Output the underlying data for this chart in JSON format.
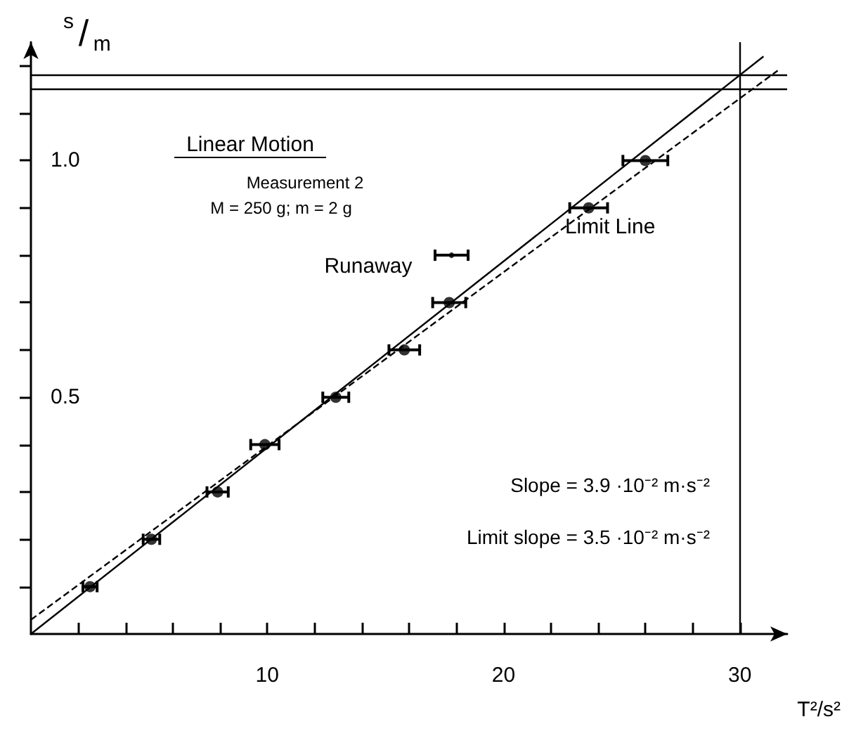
{
  "chart_data": {
    "type": "scatter",
    "xlabel": "T²/s²",
    "ylabel": "s/m",
    "xlim": [
      0,
      32
    ],
    "ylim": [
      0,
      1.25
    ],
    "xticks": [
      {
        "value": 2,
        "label": null
      },
      {
        "value": 4,
        "label": null
      },
      {
        "value": 6,
        "label": null
      },
      {
        "value": 8,
        "label": null
      },
      10,
      {
        "value": 12,
        "label": null
      },
      {
        "value": 14,
        "label": null
      },
      {
        "value": 16,
        "label": null
      },
      {
        "value": 18,
        "label": null
      },
      20,
      {
        "value": 22,
        "label": null
      },
      {
        "value": 24,
        "label": null
      },
      {
        "value": 26,
        "label": null
      },
      {
        "value": 28,
        "label": null
      },
      30
    ],
    "yticks": [
      {
        "value": 0.1,
        "label": null
      },
      {
        "value": 0.2,
        "label": null
      },
      {
        "value": 0.3,
        "label": null
      },
      {
        "value": 0.4,
        "label": null
      },
      {
        "value": 0.5,
        "label": "0.5"
      },
      {
        "value": 0.6,
        "label": null
      },
      {
        "value": 0.7,
        "label": null
      },
      {
        "value": 0.8,
        "label": null
      },
      {
        "value": 0.9,
        "label": null
      },
      {
        "value": 1.0,
        "label": "1.0"
      },
      {
        "value": 1.1,
        "label": null
      },
      {
        "value": 1.2,
        "label": null
      }
    ],
    "grid": false,
    "series": [
      {
        "color": "#000000",
        "marker": "circle",
        "x": [
          2.5,
          5.1,
          7.9,
          9.9,
          12.9,
          15.8,
          17.7,
          23.6,
          26.0
        ],
        "values": [
          0.1,
          0.2,
          0.3,
          0.4,
          0.5,
          0.6,
          0.7,
          0.9,
          1.0
        ],
        "xerrors": [
          0.3,
          0.35,
          0.45,
          0.6,
          0.55,
          0.65,
          0.7,
          0.8,
          0.95
        ]
      },
      {
        "color": "#000000",
        "marker": "circle",
        "x": [
          17.8
        ],
        "values": [
          0.8
        ],
        "xerrors": [
          0.7
        ]
      },
      {
        "type": "line",
        "color": "#000000",
        "marker": "none",
        "line_style": "solid",
        "x": [
          0,
          31
        ],
        "values": [
          0,
          1.22
        ]
      },
      {
        "type": "line",
        "color": "#000000",
        "marker": "none",
        "line_style": "dashed",
        "x": [
          0,
          31.6
        ],
        "values": [
          0.03,
          1.19
        ]
      }
    ],
    "ref_lines": [
      {
        "axis": "x",
        "value": 30,
        "label": null,
        "color": "#000000"
      },
      {
        "axis": "y",
        "value": 1.15,
        "label": null,
        "color": "#000000"
      },
      {
        "axis": "y",
        "value": 1.18,
        "label": null,
        "color": "#000000"
      }
    ],
    "annotations": [
      "Linear Motion",
      "Measurement 2",
      "M = 250 g; m = 2 g",
      {
        "text": "Runaway",
        "x": 17.8,
        "y": 0.8
      },
      {
        "text": "Limit Line",
        "x": 22.6,
        "y": 0.86
      },
      "Slope = 3.9 ·10⁻² m·s⁻²",
      "Limit slope = 3.5 ·10⁻² m·s⁻²"
    ]
  }
}
